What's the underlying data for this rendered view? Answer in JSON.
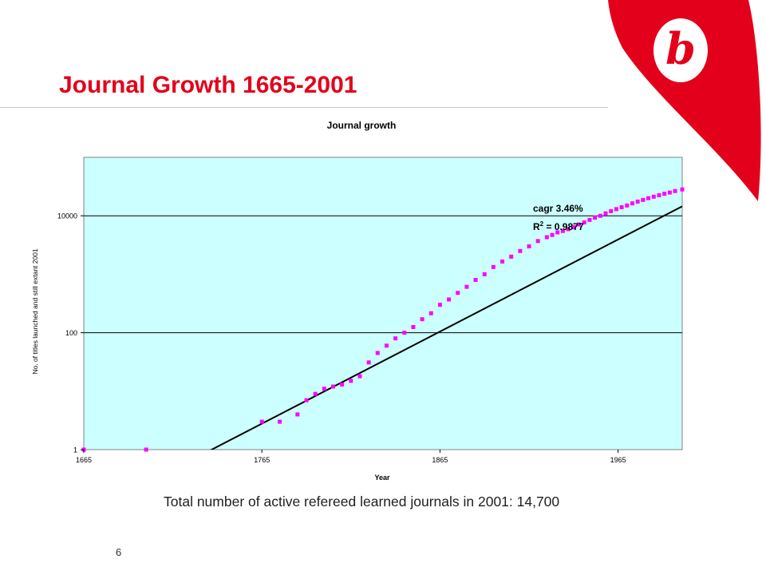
{
  "slide": {
    "title": "Journal Growth 1665-2001",
    "caption": "Total number of active refereed learned journals in 2001: 14,700",
    "page_number": "6",
    "logo_letter": "b",
    "colors": {
      "title": "#e3001b",
      "logo": "#e3001b",
      "plot_bg": "#ccffff",
      "markers": "#ff00ff",
      "trend": "#000000"
    }
  },
  "chart_data": {
    "type": "scatter",
    "title": "Journal growth",
    "xlabel": "Year",
    "ylabel": "No. of titles launched and still extant 2001",
    "xlim": [
      1665,
      2001
    ],
    "ylim": [
      1,
      100000
    ],
    "y_scale": "log",
    "x_ticks": [
      "1665",
      "1765",
      "1865",
      "1965"
    ],
    "y_ticks": [
      "1",
      "100",
      "10000"
    ],
    "grid": "horizontal",
    "legend": "none",
    "annotations": [
      "cagr 3.46%",
      "R",
      "2",
      " = 0.9877"
    ],
    "series": [
      {
        "type": "scatter",
        "x": [
          1665,
          1700,
          1765,
          1775,
          1785,
          1790,
          1795,
          1800,
          1805,
          1810,
          1815,
          1820,
          1825,
          1830,
          1835,
          1840,
          1845,
          1850,
          1855,
          1860,
          1865,
          1870,
          1875,
          1880,
          1885,
          1890,
          1895,
          1900,
          1905,
          1910,
          1915,
          1920,
          1925,
          1928,
          1931,
          1934,
          1937,
          1940,
          1943,
          1946,
          1949,
          1952,
          1955,
          1958,
          1961,
          1964,
          1967,
          1970,
          1973,
          1976,
          1979,
          1982,
          1985,
          1988,
          1991,
          1994,
          1997,
          2001
        ],
        "y": [
          1,
          1,
          3,
          3,
          4,
          7,
          9,
          11,
          12,
          13,
          15,
          18,
          31,
          45,
          60,
          80,
          100,
          125,
          170,
          215,
          300,
          370,
          480,
          610,
          800,
          1000,
          1330,
          1650,
          2000,
          2500,
          3000,
          3700,
          4300,
          4700,
          5200,
          5500,
          5900,
          6400,
          7100,
          7700,
          8500,
          9300,
          10000,
          11000,
          12000,
          13000,
          14000,
          15000,
          16300,
          17500,
          18700,
          20000,
          21200,
          22500,
          23800,
          25000,
          26500,
          28200
        ]
      },
      {
        "type": "line",
        "x": [
          1665,
          2001
        ],
        "y": [
          0.074,
          14500
        ]
      }
    ]
  }
}
